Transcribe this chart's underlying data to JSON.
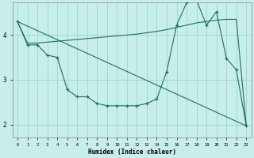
{
  "xlabel": "Humidex (Indice chaleur)",
  "bg_color": "#c8eeea",
  "grid_color": "#96d8d0",
  "line_color": "#1e6e62",
  "xlim": [
    -0.5,
    23.5
  ],
  "ylim": [
    1.72,
    4.72
  ],
  "yticks": [
    2,
    3,
    4
  ],
  "xticks": [
    0,
    1,
    2,
    3,
    4,
    5,
    6,
    7,
    8,
    9,
    10,
    11,
    12,
    13,
    14,
    15,
    16,
    17,
    18,
    19,
    20,
    21,
    22,
    23
  ],
  "x_labels": [
    "0",
    "1",
    "2",
    "3",
    "4",
    "5",
    "6",
    "7",
    "8",
    "9",
    "10",
    "11",
    "12",
    "13",
    "14",
    "15",
    "16",
    "17",
    "18",
    "19",
    "20",
    "21",
    "22",
    "23"
  ],
  "line1_x": [
    0,
    1,
    2,
    3,
    4,
    5,
    6,
    7,
    8,
    9,
    10,
    11,
    12,
    13,
    14,
    15,
    16,
    17,
    18,
    19,
    20,
    21,
    22,
    23
  ],
  "line1_y": [
    4.3,
    3.78,
    3.78,
    3.55,
    3.5,
    2.78,
    2.62,
    2.62,
    2.47,
    2.42,
    2.42,
    2.42,
    2.42,
    2.47,
    2.57,
    3.18,
    4.22,
    4.72,
    4.78,
    4.22,
    4.52,
    3.48,
    3.22,
    1.97
  ],
  "line2_x": [
    0,
    23
  ],
  "line2_y": [
    4.3,
    1.97
  ],
  "line3_x": [
    0,
    1,
    2,
    3,
    4,
    5,
    6,
    7,
    8,
    9,
    10,
    11,
    12,
    13,
    14,
    15,
    16,
    17,
    18,
    19,
    20,
    21,
    22,
    23
  ],
  "line3_y": [
    4.3,
    3.82,
    3.82,
    3.84,
    3.86,
    3.88,
    3.9,
    3.92,
    3.94,
    3.96,
    3.98,
    4.0,
    4.02,
    4.05,
    4.08,
    4.12,
    4.17,
    4.22,
    4.27,
    4.3,
    4.33,
    4.35,
    4.35,
    1.97
  ]
}
